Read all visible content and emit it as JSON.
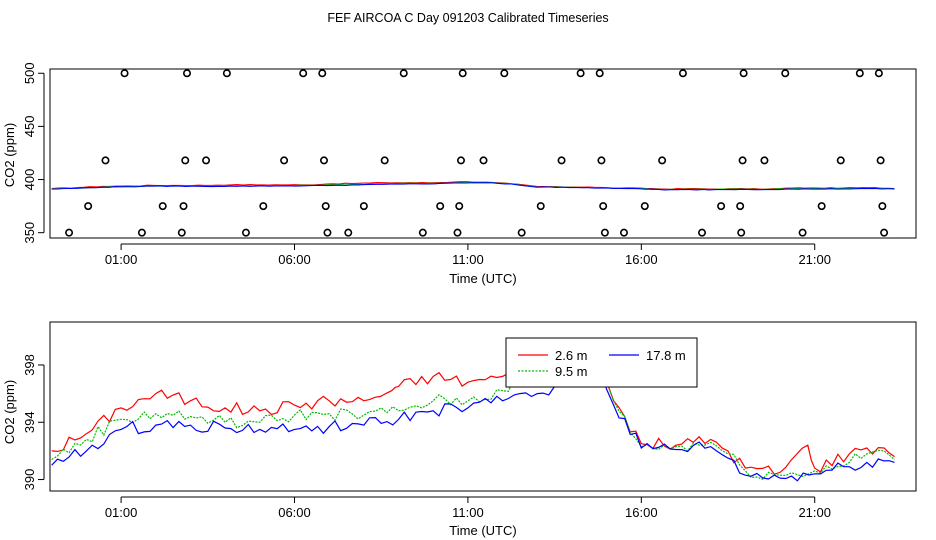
{
  "title": "FEF AIRCOA C  Day 091203  Calibrated Timeseries",
  "chart_data": [
    {
      "type": "scatter",
      "xlabel": "Time (UTC)",
      "ylabel": "CO2 (ppm)",
      "xticks": [
        "01:00",
        "06:00",
        "11:00",
        "16:00",
        "21:00"
      ],
      "xtick_hours": [
        1,
        6,
        11,
        16,
        21
      ],
      "yticks": [
        "350",
        "400",
        "450",
        "500"
      ],
      "ytick_values": [
        350,
        400,
        450,
        500
      ],
      "xlim_hours": [
        -1.05,
        23.92
      ],
      "ylim": [
        345,
        504
      ],
      "points": [
        {
          "t": -0.5,
          "v": 350
        },
        {
          "t": 0.05,
          "v": 375
        },
        {
          "t": 0.55,
          "v": 418
        },
        {
          "t": 1.1,
          "v": 500
        },
        {
          "t": 1.6,
          "v": 350
        },
        {
          "t": 2.2,
          "v": 375
        },
        {
          "t": 2.75,
          "v": 350
        },
        {
          "t": 2.8,
          "v": 375
        },
        {
          "t": 2.85,
          "v": 418
        },
        {
          "t": 2.9,
          "v": 500
        },
        {
          "t": 3.45,
          "v": 418
        },
        {
          "t": 4.05,
          "v": 500
        },
        {
          "t": 4.6,
          "v": 350
        },
        {
          "t": 5.1,
          "v": 375
        },
        {
          "t": 5.7,
          "v": 418
        },
        {
          "t": 6.25,
          "v": 500
        },
        {
          "t": 6.8,
          "v": 500
        },
        {
          "t": 6.85,
          "v": 418
        },
        {
          "t": 6.9,
          "v": 375
        },
        {
          "t": 6.95,
          "v": 350
        },
        {
          "t": 7.55,
          "v": 350
        },
        {
          "t": 8.0,
          "v": 375
        },
        {
          "t": 8.6,
          "v": 418
        },
        {
          "t": 9.15,
          "v": 500
        },
        {
          "t": 9.7,
          "v": 350
        },
        {
          "t": 10.2,
          "v": 375
        },
        {
          "t": 10.8,
          "v": 418
        },
        {
          "t": 10.85,
          "v": 500
        },
        {
          "t": 10.75,
          "v": 375
        },
        {
          "t": 10.7,
          "v": 350
        },
        {
          "t": 11.45,
          "v": 418
        },
        {
          "t": 12.05,
          "v": 500
        },
        {
          "t": 12.55,
          "v": 350
        },
        {
          "t": 13.1,
          "v": 375
        },
        {
          "t": 13.7,
          "v": 418
        },
        {
          "t": 14.25,
          "v": 500
        },
        {
          "t": 14.8,
          "v": 500
        },
        {
          "t": 14.85,
          "v": 418
        },
        {
          "t": 14.9,
          "v": 375
        },
        {
          "t": 14.95,
          "v": 350
        },
        {
          "t": 15.5,
          "v": 350
        },
        {
          "t": 16.1,
          "v": 375
        },
        {
          "t": 16.6,
          "v": 418
        },
        {
          "t": 17.2,
          "v": 500
        },
        {
          "t": 17.75,
          "v": 350
        },
        {
          "t": 18.3,
          "v": 375
        },
        {
          "t": 18.85,
          "v": 375
        },
        {
          "t": 18.88,
          "v": 350
        },
        {
          "t": 18.92,
          "v": 418
        },
        {
          "t": 18.95,
          "v": 500
        },
        {
          "t": 19.55,
          "v": 418
        },
        {
          "t": 20.15,
          "v": 500
        },
        {
          "t": 20.65,
          "v": 350
        },
        {
          "t": 21.2,
          "v": 375
        },
        {
          "t": 21.75,
          "v": 418
        },
        {
          "t": 22.3,
          "v": 500
        },
        {
          "t": 22.85,
          "v": 500
        },
        {
          "t": 22.9,
          "v": 418
        },
        {
          "t": 22.95,
          "v": 375
        },
        {
          "t": 23.0,
          "v": 350
        }
      ],
      "baseline_series": [
        {
          "color": "#ff0000",
          "values": [
            391.5,
            392.5,
            393.5,
            394,
            394.5,
            394.5,
            394.5,
            395,
            395,
            395,
            395,
            396,
            396.5,
            397,
            397,
            397,
            398,
            397.5,
            396,
            393.5,
            393,
            393,
            392,
            392,
            391,
            391.5,
            391,
            391.5,
            391,
            392,
            392,
            392,
            392.5,
            391.5
          ]
        },
        {
          "color": "#00cc00",
          "values": [
            391.3,
            392,
            393,
            393.5,
            394,
            394,
            393.8,
            394,
            394,
            394.2,
            394.5,
            395,
            395.5,
            396,
            396.5,
            396.5,
            397,
            397.5,
            396,
            393,
            393,
            392.5,
            391.8,
            391.6,
            390.5,
            390.8,
            390.8,
            391,
            390.8,
            391.5,
            391.5,
            391.5,
            392,
            391.3
          ]
        },
        {
          "color": "#0000ff",
          "values": [
            391,
            391.8,
            392.8,
            393.3,
            393.8,
            393.8,
            393.5,
            393.8,
            393.8,
            394,
            394.2,
            394.5,
            395,
            395.5,
            396,
            396,
            396.8,
            397,
            395.8,
            392.8,
            392.8,
            392.3,
            391.6,
            391.4,
            390.2,
            390.5,
            390.5,
            390.8,
            390.6,
            391,
            391.2,
            391.2,
            391.5,
            391.2
          ]
        }
      ]
    },
    {
      "type": "line",
      "xlabel": "Time (UTC)",
      "ylabel": "CO2 (ppm)",
      "xticks": [
        "01:00",
        "06:00",
        "11:00",
        "16:00",
        "21:00"
      ],
      "xtick_hours": [
        1,
        6,
        11,
        16,
        21
      ],
      "yticks": [
        "390",
        "394",
        "398"
      ],
      "ytick_values": [
        390,
        394,
        398
      ],
      "xlim_hours": [
        -1.05,
        23.92
      ],
      "ylim": [
        389.2,
        401
      ],
      "legend": {
        "placement": "top-center"
      },
      "series": [
        {
          "name": "2.6 m",
          "color": "#ff0000",
          "hours": [
            -1,
            0,
            1,
            2,
            3,
            4,
            5,
            6,
            7,
            8,
            8.8,
            9,
            10,
            11,
            12,
            12.5,
            13,
            13.5,
            14,
            14.8,
            15.2,
            16,
            17,
            18,
            18.5,
            19,
            20,
            20.8,
            21,
            22,
            22.5,
            23,
            23.3
          ],
          "values": [
            392,
            393.2,
            395,
            396,
            395.5,
            395,
            394.8,
            395.2,
            395.5,
            395.5,
            396.2,
            396.5,
            397.2,
            396.8,
            397.2,
            397,
            397,
            396.5,
            398.8,
            398.2,
            395.5,
            392.5,
            392.4,
            392.8,
            392,
            390.8,
            390.5,
            392.4,
            390.8,
            391.8,
            392.2,
            392.2,
            391.6
          ]
        },
        {
          "name": "9.5 m",
          "color": "#00bb00",
          "hours": [
            -1,
            0,
            1,
            2,
            3,
            4,
            5,
            6,
            7,
            8,
            9,
            10,
            11,
            12,
            12.5,
            13,
            13.5,
            14,
            14.8,
            15.2,
            16,
            17,
            18,
            18.5,
            19,
            20,
            21,
            22,
            22.5,
            23,
            23.3
          ],
          "values": [
            391.4,
            392.8,
            394.2,
            394.6,
            394.4,
            394,
            394,
            394.5,
            394.6,
            394.5,
            394.8,
            395.5,
            395.5,
            396.2,
            397,
            397,
            397.2,
            398.3,
            398.3,
            395.5,
            392.3,
            392.3,
            392.6,
            391.8,
            390.6,
            390.3,
            390.6,
            391.2,
            391.8,
            392,
            391.4
          ]
        },
        {
          "name": "17.8 m",
          "color": "#0000ff",
          "hours": [
            -1,
            0,
            1,
            2,
            3,
            4,
            5,
            6,
            7,
            8,
            9,
            10,
            11,
            12,
            12.5,
            13,
            13.5,
            14,
            14.8,
            15.2,
            16,
            17,
            18,
            18.5,
            19,
            20,
            21,
            22,
            22.5,
            23,
            23.3
          ],
          "values": [
            391,
            392,
            393.5,
            393.8,
            393.8,
            393.6,
            393.5,
            393.5,
            393.7,
            393.8,
            394.2,
            394.8,
            395,
            395.5,
            396,
            396,
            396.5,
            397.8,
            397.8,
            395.2,
            392.2,
            392.1,
            392.3,
            391.5,
            390.3,
            390.1,
            390.4,
            390.9,
            391.2,
            391.3,
            391.2
          ]
        }
      ]
    }
  ]
}
